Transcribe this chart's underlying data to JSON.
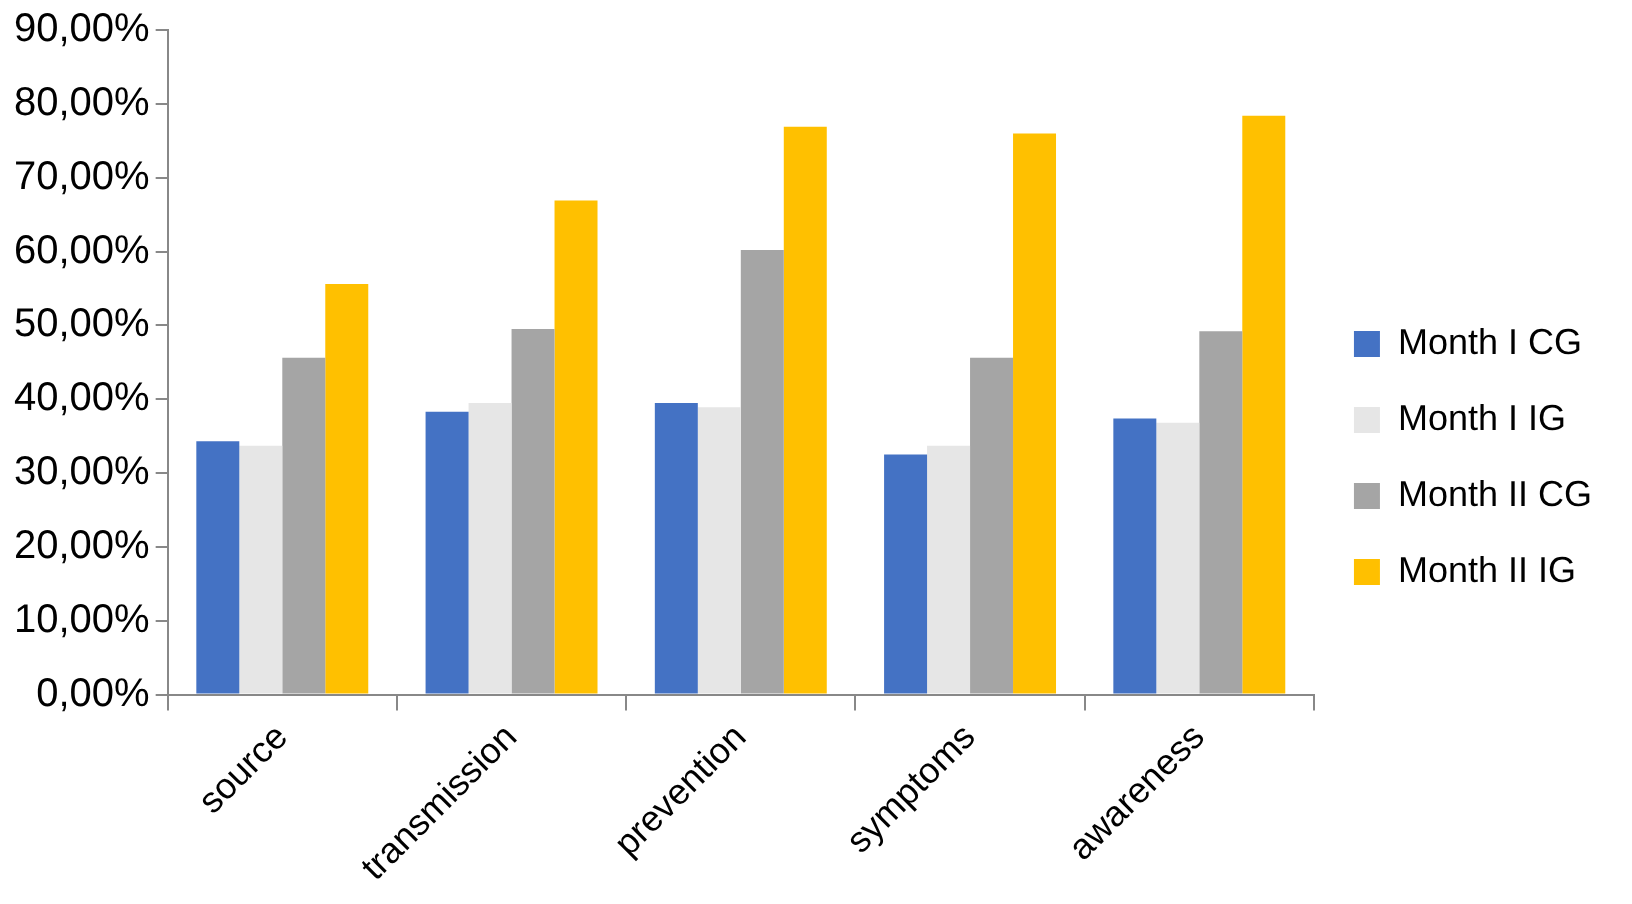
{
  "chart_data": {
    "type": "bar",
    "categories": [
      "source",
      "transmission",
      "prevention",
      "symptoms",
      "awareness"
    ],
    "series": [
      {
        "name": "Month I CG",
        "color": "#4472c4",
        "values": [
          34.3,
          38.3,
          39.5,
          32.5,
          37.4
        ]
      },
      {
        "name": "Month I IG",
        "color": "#e6e6e6",
        "values": [
          33.7,
          39.5,
          38.9,
          33.7,
          36.8
        ]
      },
      {
        "name": "Month II CG",
        "color": "#a5a5a5",
        "values": [
          45.6,
          49.5,
          60.2,
          45.6,
          49.2
        ]
      },
      {
        "name": "Month II IG",
        "color": "#ffc000",
        "values": [
          55.6,
          66.9,
          76.9,
          76.0,
          78.4
        ]
      }
    ],
    "ylim": [
      0,
      90
    ],
    "yticks": [
      {
        "value": 0,
        "label": "0,00%"
      },
      {
        "value": 10,
        "label": "10,00%"
      },
      {
        "value": 20,
        "label": "20,00%"
      },
      {
        "value": 30,
        "label": "30,00%"
      },
      {
        "value": 40,
        "label": "40,00%"
      },
      {
        "value": 50,
        "label": "50,00%"
      },
      {
        "value": 60,
        "label": "60,00%"
      },
      {
        "value": 70,
        "label": "70,00%"
      },
      {
        "value": 80,
        "label": "80,00%"
      },
      {
        "value": 90,
        "label": "90,00%"
      }
    ],
    "grid": false,
    "legend": "right"
  }
}
